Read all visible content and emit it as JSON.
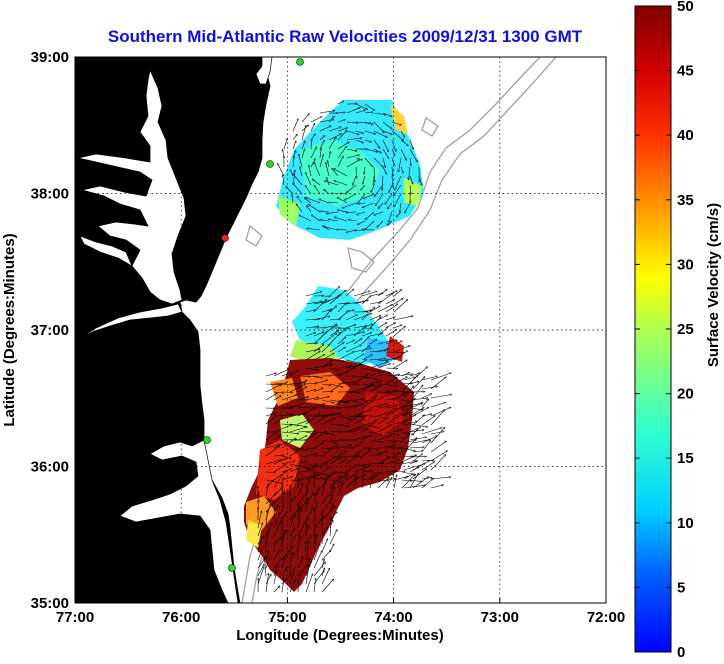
{
  "title": "Southern Mid-Atlantic Raw Velocities 2009/12/31 1300 GMT",
  "xlabel": "Longitude (Degrees:Minutes)",
  "ylabel": "Latitude (Degrees:Minutes)",
  "colorbar_label": "Surface Velocity (cm/s)",
  "x_ticks": [
    "77:00",
    "76:00",
    "75:00",
    "74:00",
    "73:00",
    "72:00"
  ],
  "y_ticks": [
    "39:00",
    "38:00",
    "37:00",
    "36:00",
    "35:00"
  ],
  "colorbar_ticks": [
    "0",
    "5",
    "10",
    "15",
    "20",
    "25",
    "30",
    "35",
    "40",
    "45",
    "50"
  ],
  "colors": {
    "land": "#55f5a9",
    "title": "#1010e0",
    "isobath": "#a0a0a0",
    "station": "#22dd22",
    "station_alt": "#ee2222"
  },
  "chart_data": {
    "type": "map",
    "x_range_lon": [
      -77,
      -72
    ],
    "y_range_lat": [
      35,
      39
    ],
    "color_range_cm_s": [
      0,
      50
    ],
    "grid": true,
    "colormap": "jet"
  }
}
